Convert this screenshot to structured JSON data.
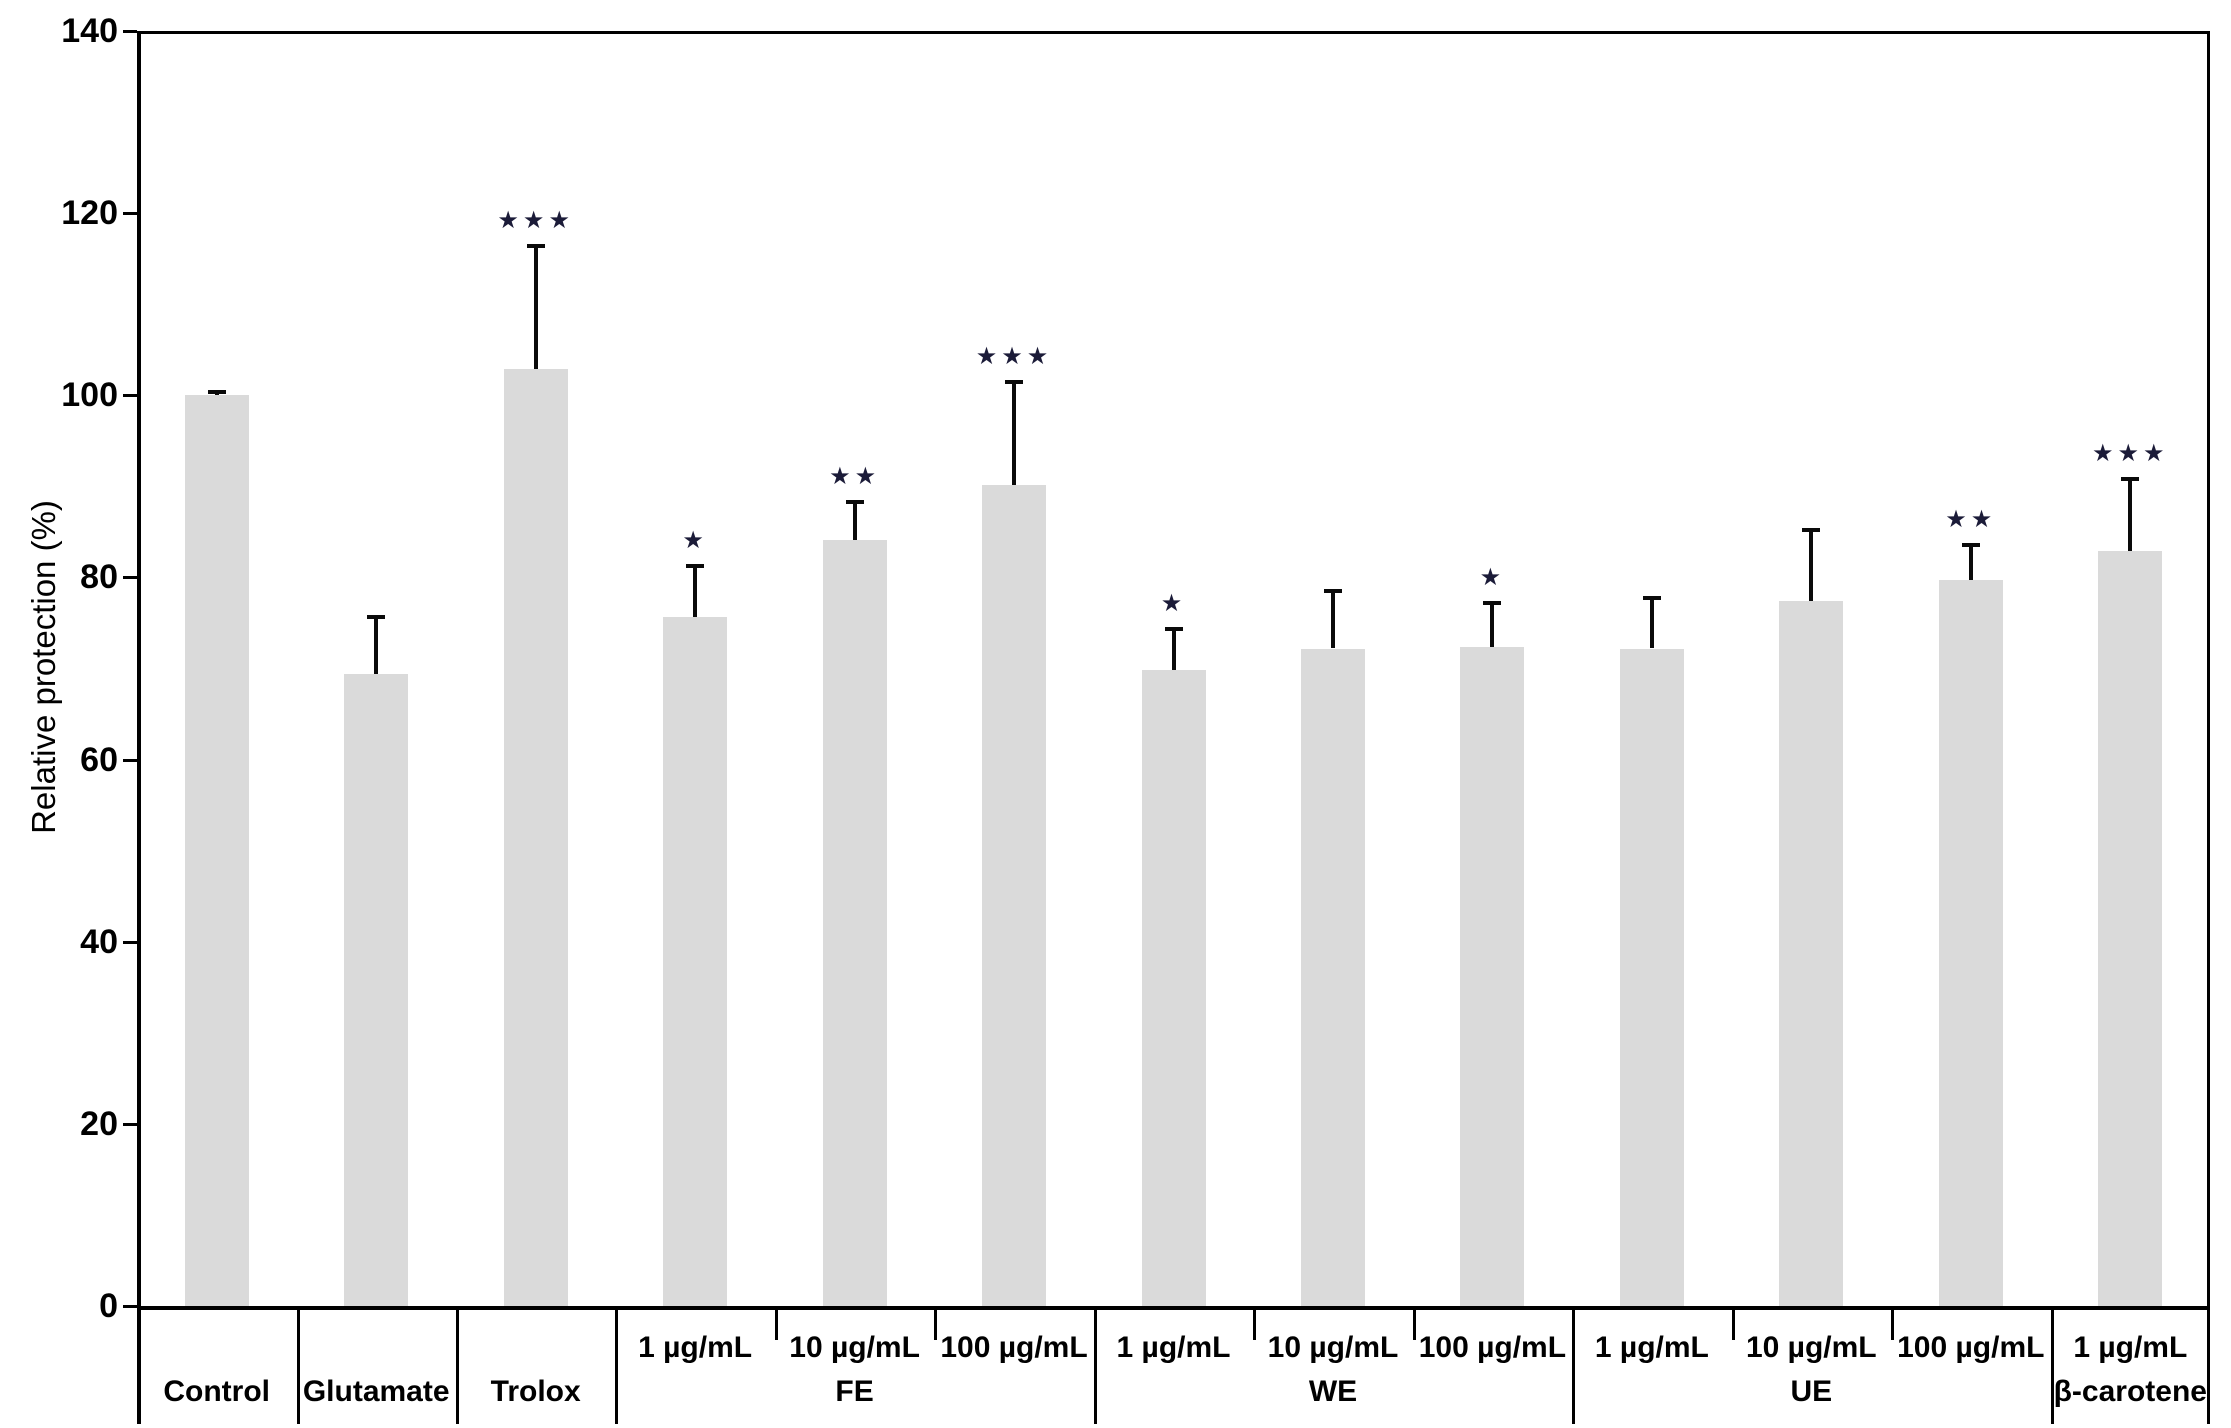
{
  "chart_data": {
    "type": "bar",
    "title": "",
    "xlabel": "",
    "ylabel": "Relative protection (%)",
    "ylim": [
      0,
      140
    ],
    "yticks": [
      0,
      20,
      40,
      60,
      80,
      100,
      120,
      140
    ],
    "grid": false,
    "legend": "none",
    "bar_color": "#dadada",
    "error_bar_color": "#0a0a0a",
    "significance_marker_color": "#1b1b38",
    "groups": [
      {
        "label": "Control",
        "bars": [
          {
            "conc": "",
            "value": 100.0,
            "err_top": 100.4,
            "sig": ""
          }
        ]
      },
      {
        "label": "Glutamate",
        "bars": [
          {
            "conc": "",
            "value": 69.4,
            "err_top": 75.7,
            "sig": ""
          }
        ]
      },
      {
        "label": "Trolox",
        "bars": [
          {
            "conc": "",
            "value": 102.9,
            "err_top": 116.4,
            "sig": "***"
          }
        ]
      },
      {
        "label": "FE",
        "bars": [
          {
            "conc": "1 µg/mL",
            "value": 75.7,
            "err_top": 81.3,
            "sig": "*"
          },
          {
            "conc": "10 µg/mL",
            "value": 84.1,
            "err_top": 88.3,
            "sig": "**"
          },
          {
            "conc": "100 µg/mL",
            "value": 90.1,
            "err_top": 101.5,
            "sig": "***"
          }
        ]
      },
      {
        "label": "WE",
        "bars": [
          {
            "conc": "1 µg/mL",
            "value": 69.8,
            "err_top": 74.3,
            "sig": "*"
          },
          {
            "conc": "10 µg/mL",
            "value": 72.2,
            "err_top": 78.5,
            "sig": ""
          },
          {
            "conc": "100 µg/mL",
            "value": 72.4,
            "err_top": 77.2,
            "sig": "*"
          }
        ]
      },
      {
        "label": "UE",
        "bars": [
          {
            "conc": "1 µg/mL",
            "value": 72.2,
            "err_top": 77.7,
            "sig": ""
          },
          {
            "conc": "10 µg/mL",
            "value": 77.4,
            "err_top": 85.2,
            "sig": ""
          },
          {
            "conc": "100 µg/mL",
            "value": 79.7,
            "err_top": 83.6,
            "sig": "**"
          }
        ]
      },
      {
        "label": "β-carotene",
        "bars": [
          {
            "conc": "1 µg/mL",
            "value": 82.9,
            "err_top": 90.8,
            "sig": "***"
          }
        ]
      }
    ]
  }
}
